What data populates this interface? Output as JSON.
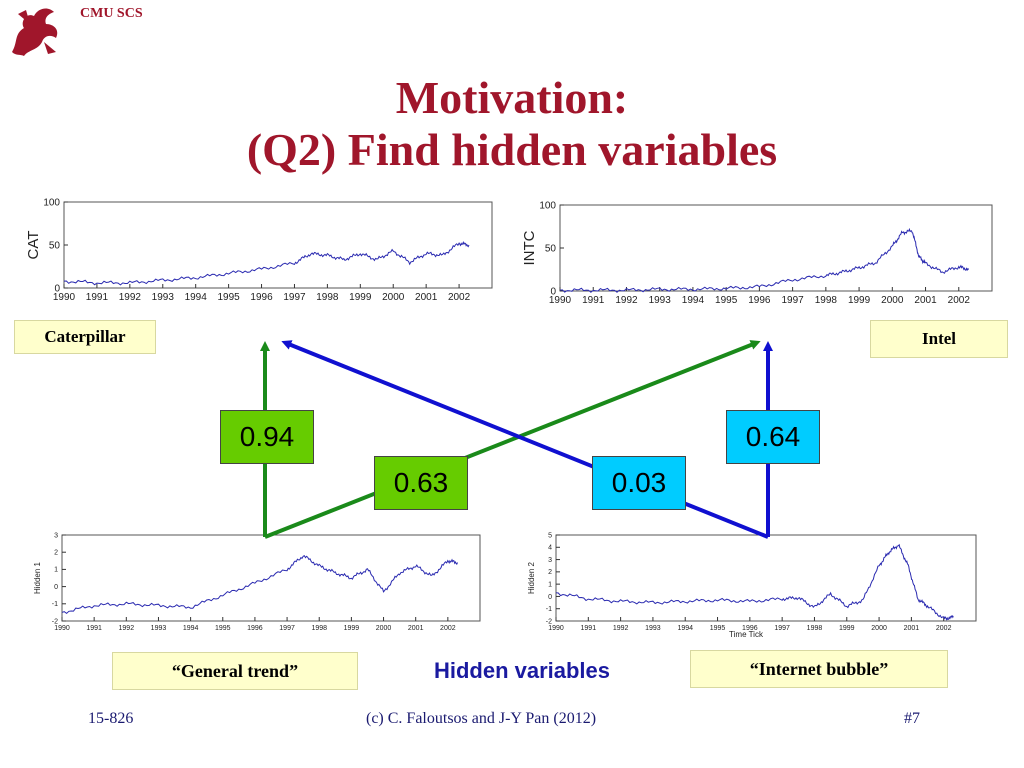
{
  "header": {
    "org": "CMU SCS"
  },
  "slide": {
    "title_line1": "Motivation:",
    "title_line2": "(Q2) Find hidden variables"
  },
  "labels": {
    "caterpillar": "Caterpillar",
    "intel": "Intel",
    "general_trend": "“General trend”",
    "internet_bubble": "“Internet bubble”",
    "hidden_variables": "Hidden variables"
  },
  "weights": {
    "hidden1_to_cat": "0.94",
    "hidden1_to_intc": "0.63",
    "hidden2_to_cat": "0.03",
    "hidden2_to_intc": "0.64"
  },
  "footer": {
    "course": "15-826",
    "copyright": "(c) C. Faloutsos and J-Y Pan (2012)",
    "page": "#7"
  },
  "colors": {
    "title": "#a0162b",
    "green_arrow": "#1a8a1a",
    "blue_arrow": "#1010d0",
    "series_line": "#2a2ab0",
    "label_bg": "#ffffcc",
    "green_box": "#66cc00",
    "cyan_box": "#00ccff"
  },
  "chart_data": [
    {
      "type": "line",
      "ylabel": "CAT",
      "yticks": [
        0,
        50,
        100
      ],
      "ylim": [
        0,
        100
      ],
      "xticks": [
        "1990",
        "1991",
        "1992",
        "1993",
        "1994",
        "1995",
        "1996",
        "1997",
        "1998",
        "1999",
        "2000",
        "2001",
        "2002"
      ],
      "x": [
        1990,
        1991,
        1992,
        1993,
        1994,
        1995,
        1996,
        1997,
        1997.5,
        1998,
        1998.5,
        1999,
        1999.5,
        2000,
        2000.5,
        2001,
        2001.5,
        2002,
        2002.3
      ],
      "values": [
        8,
        6,
        6,
        9,
        12,
        17,
        22,
        29,
        40,
        38,
        33,
        40,
        33,
        43,
        30,
        40,
        38,
        52,
        50
      ]
    },
    {
      "type": "line",
      "ylabel": "INTC",
      "yticks": [
        0,
        50,
        100
      ],
      "ylim": [
        0,
        100
      ],
      "xticks": [
        "1990",
        "1991",
        "1992",
        "1993",
        "1994",
        "1995",
        "1996",
        "1997",
        "1998",
        "1999",
        "2000",
        "2001",
        "2002"
      ],
      "x": [
        1990,
        1991,
        1992,
        1993,
        1994,
        1995,
        1996,
        1997,
        1998,
        1998.5,
        1999,
        1999.5,
        2000,
        2000.3,
        2000.6,
        2000.8,
        2001,
        2001.5,
        2002,
        2002.3
      ],
      "values": [
        1,
        1,
        1,
        2,
        2,
        3,
        5,
        13,
        18,
        22,
        27,
        33,
        52,
        68,
        70,
        40,
        32,
        22,
        28,
        25
      ]
    },
    {
      "type": "line",
      "ylabel": "Hidden 1",
      "yticks": [
        -2,
        -1,
        0,
        1,
        2,
        3
      ],
      "ylim": [
        -2,
        3
      ],
      "xticks": [
        "1990",
        "1991",
        "1992",
        "1993",
        "1994",
        "1995",
        "1996",
        "1997",
        "1998",
        "1999",
        "2000",
        "2001",
        "2002"
      ],
      "x": [
        1990,
        1991,
        1992,
        1993,
        1994,
        1995,
        1996,
        1997,
        1997.5,
        1998,
        1998.5,
        1999,
        1999.5,
        2000,
        2000.5,
        2001,
        2001.5,
        2002,
        2002.3
      ],
      "values": [
        -1.5,
        -1.1,
        -1,
        -1.1,
        -1.2,
        -0.5,
        0.2,
        1.0,
        1.8,
        1.2,
        0.8,
        0.5,
        1.0,
        -0.3,
        0.8,
        1.2,
        0.6,
        1.5,
        1.4
      ]
    },
    {
      "type": "line",
      "ylabel": "Hidden 2",
      "xlabel": "Time Tick",
      "yticks": [
        -2,
        -1,
        0,
        1,
        2,
        3,
        4,
        5
      ],
      "ylim": [
        -2,
        5
      ],
      "xticks": [
        "1990",
        "1991",
        "1992",
        "1993",
        "1994",
        "1995",
        "1996",
        "1997",
        "1998",
        "1999",
        "2000",
        "2001",
        "2002"
      ],
      "x": [
        1990,
        1991,
        1992,
        1993,
        1994,
        1995,
        1996,
        1997,
        1997.5,
        1998,
        1998.5,
        1999,
        1999.5,
        2000,
        2000.3,
        2000.6,
        2000.9,
        2001.2,
        2001.5,
        2002,
        2002.3
      ],
      "values": [
        0.3,
        -0.2,
        -0.4,
        -0.5,
        -0.4,
        -0.3,
        -0.4,
        -0.2,
        -0.1,
        -0.9,
        0.2,
        -0.8,
        -0.3,
        2.5,
        3.6,
        4.2,
        2.5,
        -0.2,
        -0.8,
        -1.8,
        -1.7
      ]
    }
  ]
}
